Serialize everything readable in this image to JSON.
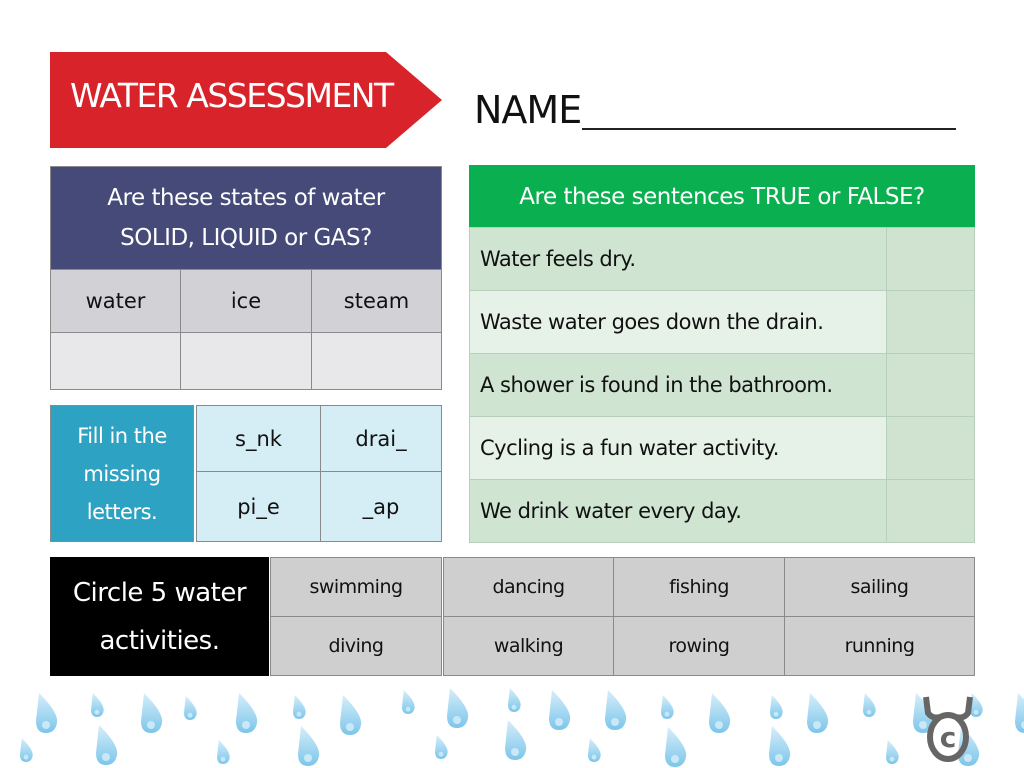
{
  "header": {
    "title": "WATER ASSESSMENT",
    "name_label": "NAME",
    "banner_color": "#d9232a"
  },
  "states": {
    "question_line1": "Are these states of water",
    "question_line2": "SOLID, LIQUID or GAS?",
    "items": [
      "water",
      "ice",
      "steam"
    ],
    "header_color": "#454a78"
  },
  "missing": {
    "instruction": [
      "Fill in the",
      "missing",
      "letters."
    ],
    "words": [
      "s_nk",
      "drai_",
      "pi_e",
      "_ap"
    ],
    "color": "#2ea2c2"
  },
  "true_false": {
    "question": "Are these sentences TRUE or FALSE?",
    "sentences": [
      "Water feels dry.",
      "Waste water goes down the drain.",
      "A shower is found in the bathroom.",
      "Cycling is a fun water activity.",
      "We drink water every day."
    ],
    "header_color": "#0aaf4f"
  },
  "activities": {
    "instruction": [
      "Circle 5 water",
      "activities."
    ],
    "words": [
      "swimming",
      "dancing",
      "fishing",
      "sailing",
      "diving",
      "walking",
      "rowing",
      "running"
    ]
  },
  "decor": {
    "drop_icon": "water-drop-icon",
    "logo_icon": "moose-copyright-icon"
  }
}
